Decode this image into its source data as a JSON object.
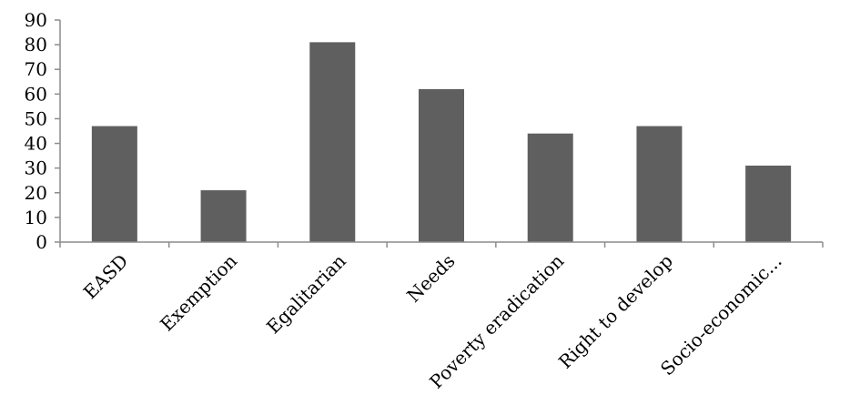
{
  "chart_data": {
    "type": "bar",
    "categories": [
      "EASD",
      "Exemption",
      "Egalitarian",
      "Needs",
      "Poverty eradication",
      "Right to develop",
      "Socio-economic..."
    ],
    "values": [
      47,
      21,
      81,
      62,
      44,
      47,
      31
    ],
    "title": "",
    "xlabel": "",
    "ylabel": "",
    "ylim": [
      0,
      90
    ],
    "yticks": [
      0,
      10,
      20,
      30,
      40,
      50,
      60,
      70,
      80,
      90
    ],
    "grid": false,
    "legend": "none",
    "bar_color": "#5f5f5f",
    "axis_color": "#8c8c8c"
  }
}
